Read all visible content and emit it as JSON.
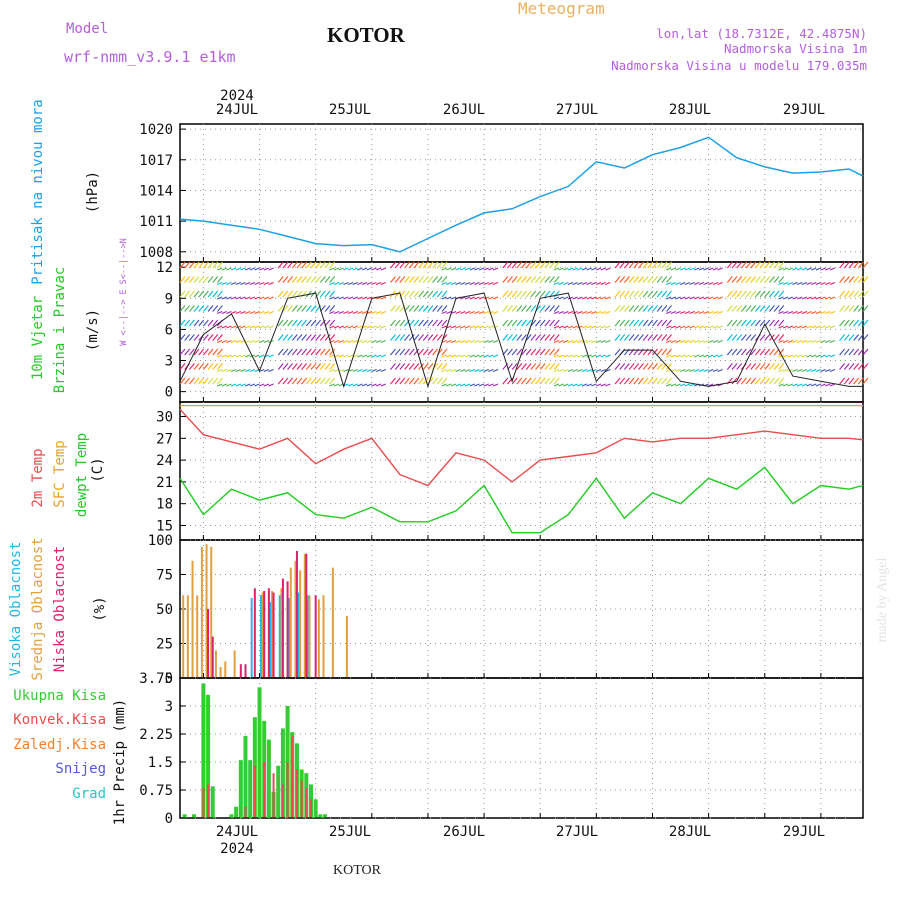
{
  "header": {
    "model_label": "Model",
    "model_name": "wrf-nmm_v3.9.1  e1km",
    "station": "KOTOR",
    "meteogram": "Meteogram",
    "lonlat": "lon,lat (18.7312E, 42.4875N)",
    "elevation": "Nadmorska Visina 1m",
    "model_elevation": "Nadmorska Visina u modelu 179.035m"
  },
  "footer": {
    "station": "KOTOR",
    "watermark": "made by Angel"
  },
  "time_axis": {
    "year": "2024",
    "days": [
      "24JUL",
      "25JUL",
      "26JUL",
      "27JUL",
      "28JUL",
      "29JUL"
    ]
  },
  "panels": {
    "pressure": {
      "ylabel": "Pritisak na nivou mora",
      "unit": "(hPa)",
      "ticks": [
        "1020",
        "1017",
        "1014",
        "1011",
        "1008"
      ]
    },
    "wind": {
      "ylabel1": "10m Vjetar",
      "ylabel2": "Brzina i Pravac",
      "unit": "(m/s)",
      "ticks": [
        "12",
        "9",
        "6",
        "3",
        "0"
      ],
      "compass": "W <--|--> E   S<--|-->N"
    },
    "temp": {
      "ylabel1": "2m Temp",
      "ylabel2": "SFC Temp",
      "ylabel3": "dewpt Temp",
      "unit": "(C)",
      "ticks": [
        "30",
        "27",
        "24",
        "21",
        "18",
        "15"
      ]
    },
    "cloud": {
      "ylabel1": "Visoka Oblacnost",
      "ylabel2": "Srednja Oblacnost",
      "ylabel3": "Niska Oblacnost",
      "unit": "(%)",
      "ticks": [
        "100",
        "75",
        "50",
        "25",
        "0"
      ]
    },
    "precip": {
      "legend": [
        "Ukupna  Kisa",
        "Konvek.Kisa",
        "Zaledj.Kisa",
        "Snijeg",
        "Grad"
      ],
      "ylabel": "1hr Precip (mm)",
      "ticks": [
        "3.75",
        "3",
        "2.25",
        "1.5",
        "0.75",
        "0"
      ]
    }
  },
  "colors": {
    "pressure": "#1ea0e6",
    "temp2m": "#e84c4c",
    "sfc": "#e8a030",
    "dewpt": "#22cc22",
    "cloud_high": "#20b8e8",
    "cloud_mid": "#e0a040",
    "cloud_low": "#e0206c",
    "precip_total": "#33cc33",
    "precip_conv": "#e84c4c"
  },
  "chart_data": [
    {
      "type": "line",
      "title": "Pritisak na nivou mora",
      "ylabel": "(hPa)",
      "ylim": [
        1007,
        1020.5
      ],
      "x_hours_from_24jul_00": [
        -5,
        0,
        6,
        12,
        18,
        24,
        30,
        36,
        42,
        48,
        54,
        60,
        66,
        72,
        78,
        84,
        90,
        96,
        102,
        108,
        114,
        120,
        126,
        132,
        138,
        141
      ],
      "values": [
        1011.2,
        1011.0,
        1010.6,
        1010.2,
        1009.5,
        1008.8,
        1008.6,
        1008.7,
        1008.0,
        1009.3,
        1010.6,
        1011.8,
        1012.2,
        1013.4,
        1014.4,
        1016.8,
        1016.2,
        1017.5,
        1018.2,
        1019.2,
        1017.2,
        1016.3,
        1015.7,
        1015.8,
        1016.1,
        1015.4
      ]
    },
    {
      "type": "line",
      "title": "10m Vjetar Brzina i Pravac",
      "ylabel": "(m/s)",
      "ylim": [
        -1,
        12.5
      ],
      "x_hours_from_24jul_00": [
        -5,
        0,
        6,
        12,
        18,
        24,
        30,
        36,
        42,
        48,
        54,
        60,
        66,
        72,
        78,
        84,
        90,
        96,
        102,
        108,
        114,
        120,
        126,
        132,
        138,
        141
      ],
      "values": [
        1.0,
        5.5,
        7.5,
        2.0,
        9.0,
        9.5,
        0.5,
        9.0,
        9.5,
        0.5,
        9.0,
        9.5,
        1.0,
        9.0,
        9.5,
        1.0,
        4.0,
        4.0,
        1.0,
        0.5,
        1.0,
        6.5,
        1.5,
        1.0,
        0.5,
        0.5
      ]
    },
    {
      "type": "line",
      "title": "2m Temp / SFC Temp / dewpt Temp",
      "ylabel": "(C)",
      "ylim": [
        13,
        32
      ],
      "x_hours_from_24jul_00": [
        -5,
        0,
        6,
        12,
        18,
        24,
        30,
        36,
        42,
        48,
        54,
        60,
        66,
        72,
        78,
        84,
        90,
        96,
        102,
        108,
        114,
        120,
        126,
        132,
        138,
        141
      ],
      "series": [
        {
          "name": "2m Temp",
          "values": [
            31,
            27.5,
            26.5,
            25.5,
            27,
            23.5,
            25.5,
            27,
            22,
            20.5,
            25,
            24,
            21,
            24,
            24.5,
            25,
            27,
            26.5,
            27,
            27,
            27.5,
            28,
            27.5,
            27,
            27,
            26.8
          ]
        },
        {
          "name": "SFC Temp",
          "values": [
            31.5,
            31.5,
            31.5,
            31.5,
            31.5,
            31.5,
            31.5,
            31.5,
            31.5,
            31.5,
            31.5,
            31.5,
            31.5,
            31.5,
            31.5,
            31.5,
            31.5,
            31.5,
            31.5,
            31.5,
            31.5,
            31.5,
            31.5,
            31.5,
            31.5,
            31.5
          ]
        },
        {
          "name": "dewpt Temp",
          "values": [
            21.5,
            16.5,
            20,
            18.5,
            19.5,
            16.5,
            16,
            17.5,
            15.5,
            15.5,
            17,
            20.5,
            14,
            14,
            16.5,
            21.5,
            16,
            19.5,
            18,
            21.5,
            20,
            23,
            18,
            20.5,
            20,
            20.5
          ]
        }
      ]
    },
    {
      "type": "bar",
      "title": "Oblacnost",
      "ylabel": "(%)",
      "ylim": [
        0,
        100
      ],
      "series": [
        {
          "name": "Visoka Oblacnost",
          "x": [
            10,
            12,
            14,
            16,
            18,
            20,
            22
          ],
          "values": [
            58,
            60,
            55,
            60,
            58,
            62,
            60
          ]
        },
        {
          "name": "Srednja Oblacnost",
          "x": [
            -4,
            -3,
            -2,
            -1,
            0,
            1,
            2,
            3,
            4,
            5,
            7,
            13,
            15,
            17,
            19,
            20,
            21,
            22,
            23,
            25,
            26,
            28,
            31
          ],
          "values": [
            60,
            60,
            85,
            60,
            95,
            97,
            95,
            20,
            8,
            12,
            20,
            62,
            63,
            65,
            80,
            85,
            78,
            90,
            60,
            57,
            60,
            80,
            45
          ]
        },
        {
          "name": "Niska Oblacnost",
          "x": [
            1,
            2,
            8,
            9,
            11,
            13,
            14,
            15,
            17,
            18,
            20,
            22,
            24
          ],
          "values": [
            50,
            30,
            10,
            10,
            65,
            63,
            65,
            62,
            72,
            70,
            92,
            90,
            60
          ]
        }
      ]
    },
    {
      "type": "bar",
      "title": "1hr Precip",
      "ylabel": "(mm)",
      "ylim": [
        0,
        3.75
      ],
      "series": [
        {
          "name": "Ukupna  Kisa",
          "x": [
            -4,
            -2,
            0,
            1,
            2,
            6,
            7,
            8,
            9,
            10,
            11,
            12,
            13,
            14,
            15,
            16,
            17,
            18,
            19,
            20,
            21,
            22,
            23,
            24,
            25,
            26
          ],
          "values": [
            0.1,
            0.1,
            3.6,
            3.3,
            0.85,
            0.1,
            0.3,
            1.55,
            2.2,
            1.55,
            2.7,
            3.5,
            2.6,
            2.1,
            0.7,
            1.4,
            2.4,
            3.0,
            2.3,
            2.0,
            1.3,
            1.2,
            0.9,
            0.5,
            0.1,
            0.1
          ]
        },
        {
          "name": "Konvek.Kisa",
          "x": [
            0,
            1,
            9,
            11,
            13,
            15,
            17,
            18,
            19,
            20,
            21,
            22,
            23
          ],
          "values": [
            0.8,
            0.9,
            0.3,
            1.4,
            1.5,
            1.2,
            0.9,
            1.5,
            2.2,
            1.3,
            1.0,
            0.8,
            0.5
          ]
        }
      ]
    }
  ]
}
